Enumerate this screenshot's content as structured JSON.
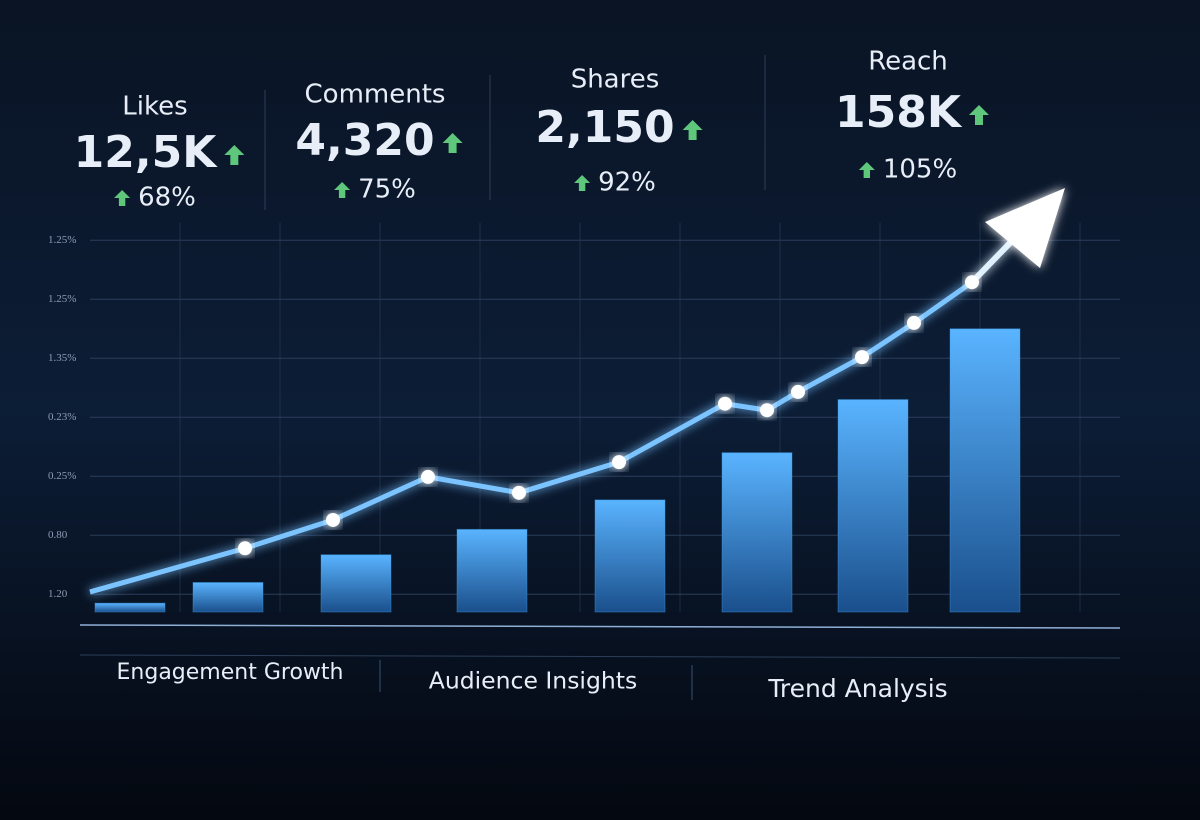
{
  "kpis": [
    {
      "label": "Likes",
      "value": "12,5K",
      "change": "68%"
    },
    {
      "label": "Comments",
      "value": "4,320",
      "change": "75%"
    },
    {
      "label": "Shares",
      "value": "2,150",
      "change": "92%"
    },
    {
      "label": "Reach",
      "value": "158K",
      "change": "105%"
    }
  ],
  "chart_data": {
    "type": "combo",
    "xlim": [
      0,
      10.3
    ],
    "ylim": [
      0,
      6.6
    ],
    "yticks": [
      {
        "value": 0.3,
        "label": "1.20"
      },
      {
        "value": 1.3,
        "label": "0.80"
      },
      {
        "value": 2.3,
        "label": "0.25%"
      },
      {
        "value": 3.3,
        "label": "0.23%"
      },
      {
        "value": 4.3,
        "label": "1.35%"
      },
      {
        "value": 5.3,
        "label": "1.25%"
      },
      {
        "value": 6.3,
        "label": "1.25%"
      }
    ],
    "grid": true,
    "series": [
      {
        "type": "bar",
        "color": "#3a9be8",
        "x": [
          0.4,
          1.38,
          2.66,
          4.02,
          5.4,
          6.67,
          7.83,
          8.95
        ],
        "values": [
          0.15,
          0.5,
          0.97,
          1.4,
          1.9,
          2.7,
          3.6,
          4.8
        ]
      },
      {
        "type": "line",
        "color": "#7cc4ff",
        "x": [
          0,
          1.55,
          2.43,
          3.38,
          4.29,
          5.29,
          6.35,
          6.77,
          7.08,
          7.72,
          8.24,
          8.82
        ],
        "values": [
          0.34,
          1.08,
          1.56,
          2.29,
          2.02,
          2.54,
          3.53,
          3.42,
          3.73,
          4.32,
          4.9,
          5.59
        ]
      }
    ]
  },
  "tabs": [
    "Engagement Growth",
    "Audience Insights",
    "Trend Analysis"
  ]
}
